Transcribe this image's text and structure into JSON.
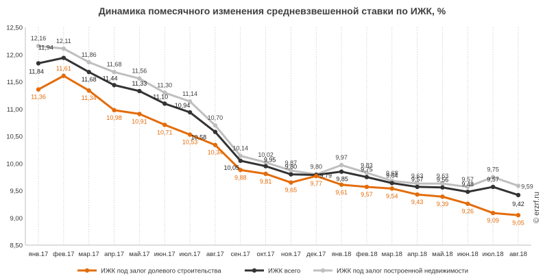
{
  "chart_data": {
    "type": "line",
    "title": "Динамика помесячного изменения средневзвешенной ставки по ИЖК, %",
    "xlabel": "",
    "ylabel": "",
    "ylim": [
      8.5,
      12.5
    ],
    "yticks": [
      "12,50",
      "12,00",
      "11,50",
      "11,00",
      "10,50",
      "10,00",
      "9,50",
      "9,00",
      "8,50"
    ],
    "categories": [
      "янв.17",
      "фев.17",
      "мар.17",
      "апр.17",
      "май.17",
      "июн.17",
      "июл.17",
      "авг.17",
      "сен.17",
      "окт.17",
      "ноя.17",
      "дек.17",
      "янв.18",
      "фев.18",
      "мар.18",
      "апр.18",
      "май.18",
      "июн.18",
      "июл.18",
      "авг.18"
    ],
    "grid": "vertical",
    "legend_position": "bottom",
    "series": [
      {
        "name": "ИЖК под залог долевого строительства",
        "color": "#e36c0a",
        "values": [
          11.36,
          11.61,
          11.34,
          10.98,
          10.91,
          10.71,
          10.53,
          10.34,
          9.88,
          9.81,
          9.65,
          9.77,
          9.61,
          9.57,
          9.54,
          9.43,
          9.39,
          9.26,
          9.09,
          9.05
        ],
        "labels": [
          "11,36",
          "11,61",
          "11,34",
          "10,98",
          "10,91",
          "10,71",
          "10,53",
          "10,34",
          "9,88",
          "9,81",
          "9,65",
          "9,77",
          "9,61",
          "9,57",
          "9,54",
          "9,43",
          "9,39",
          "9,26",
          "9,09",
          "9,05"
        ]
      },
      {
        "name": "ИЖК всего",
        "color": "#333333",
        "values": [
          11.84,
          11.94,
          11.68,
          11.44,
          11.33,
          11.1,
          10.94,
          10.58,
          10.05,
          9.95,
          9.8,
          9.79,
          9.85,
          9.75,
          9.64,
          9.57,
          9.56,
          9.48,
          9.57,
          9.42
        ],
        "labels": [
          "11,84",
          "11,94",
          "11,68",
          "11,44",
          "11,33",
          "11,10",
          "10,94",
          "10,58",
          "10,05",
          "9,95",
          "9,80",
          "9,79",
          "9,85",
          "9,75",
          "9,64",
          "9,57",
          "9,56",
          "9,48",
          "9,57",
          "9,42"
        ]
      },
      {
        "name": "ИЖК под залог построенной недвижимости",
        "color": "#bfbfbf",
        "values": [
          12.16,
          12.11,
          11.86,
          11.68,
          11.56,
          11.3,
          11.14,
          10.7,
          10.14,
          10.02,
          9.87,
          9.8,
          9.97,
          9.83,
          9.68,
          9.63,
          9.63,
          9.57,
          9.75,
          9.59
        ],
        "labels": [
          "12,16",
          "12,11",
          "11,86",
          "11,68",
          "11,56",
          "11,30",
          "11,14",
          "10,70",
          "10,14",
          "10,02",
          "9,87",
          "9,80",
          "9,97",
          "9,83",
          "9,68",
          "9,63",
          "9,63",
          "9,57",
          "9,75",
          "9,59"
        ]
      }
    ]
  },
  "watermark": "© erzrf.ru"
}
